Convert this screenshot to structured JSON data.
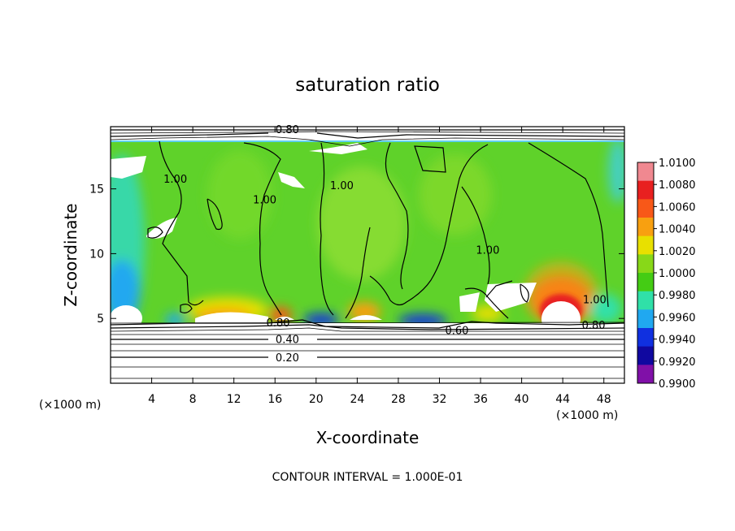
{
  "chart_data": {
    "type": "heatmap",
    "title": "saturation ratio",
    "xlabel": "X-coordinate",
    "ylabel": "Z-coordinate",
    "x_unit": "(×1000 m)",
    "y_unit": "(×1000 m)",
    "xlim": [
      0,
      50
    ],
    "ylim": [
      0,
      19.8
    ],
    "x_ticks": [
      4,
      8,
      12,
      16,
      20,
      24,
      28,
      32,
      36,
      40,
      44,
      48
    ],
    "y_ticks": [
      5,
      10,
      15
    ],
    "footer": "CONTOUR INTERVAL = 1.000E-01",
    "contour_interval": 0.1,
    "contour_labels": [
      {
        "text": "0.80",
        "x": 17.2,
        "z": 19.6
      },
      {
        "text": "1.00",
        "x": 6.3,
        "z": 15.8
      },
      {
        "text": "1.00",
        "x": 15.0,
        "z": 14.2
      },
      {
        "text": "1.00",
        "x": 22.5,
        "z": 15.3
      },
      {
        "text": "1.00",
        "x": 36.7,
        "z": 10.3
      },
      {
        "text": "1.00",
        "x": 47.1,
        "z": 6.5
      },
      {
        "text": "0.80",
        "x": 16.3,
        "z": 4.7
      },
      {
        "text": "0.60",
        "x": 33.7,
        "z": 4.1
      },
      {
        "text": "0.80",
        "x": 47.0,
        "z": 4.5
      },
      {
        "text": "0.40",
        "x": 17.2,
        "z": 3.4
      },
      {
        "text": "0.20",
        "x": 17.2,
        "z": 2.0
      }
    ],
    "colorbar": {
      "min": 0.99,
      "max": 1.01,
      "labels": [
        "1.0100",
        "1.0080",
        "1.0060",
        "1.0040",
        "1.0020",
        "1.0000",
        "0.9980",
        "0.9960",
        "0.9940",
        "0.9920",
        "0.9900"
      ],
      "colors": [
        "#f08890",
        "#e82020",
        "#f85818",
        "#f8a010",
        "#e8e000",
        "#88d818",
        "#44cc14",
        "#30e0a8",
        "#20a8f0",
        "#1030e0",
        "#1008a0",
        "#8010a8"
      ]
    }
  }
}
